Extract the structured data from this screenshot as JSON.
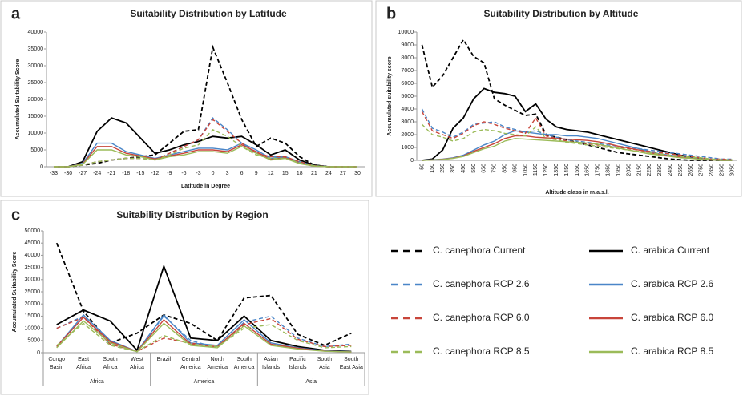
{
  "legend": [
    {
      "name": "C. canephora Current",
      "color": "#000000",
      "dashed": true
    },
    {
      "name": "C. arabica Current",
      "color": "#000000",
      "dashed": false
    },
    {
      "name": "C. canephora RCP 2.6",
      "color": "#4a86c8",
      "dashed": true
    },
    {
      "name": "C. arabica RCP 2.6",
      "color": "#4a86c8",
      "dashed": false
    },
    {
      "name": "C. canephora RCP 6.0",
      "color": "#c8453a",
      "dashed": true
    },
    {
      "name": "C. arabica RCP 6.0",
      "color": "#c8453a",
      "dashed": false
    },
    {
      "name": "C. canephora RCP 8.5",
      "color": "#9bbb59",
      "dashed": true
    },
    {
      "name": "C. arabica RCP 8.5",
      "color": "#9bbb59",
      "dashed": false
    }
  ],
  "chart_data": [
    {
      "type": "line",
      "panel": "a",
      "title": "Suitability Distribution by Latitude",
      "x_label": "Latitude in Degree",
      "y_label": "Accumulated Suitability Score",
      "categories": [
        -33,
        -30,
        -27,
        -24,
        -21,
        -18,
        -15,
        -12,
        -9,
        -6,
        -3,
        0,
        3,
        6,
        9,
        12,
        15,
        18,
        21,
        24,
        27,
        30
      ],
      "ylim": [
        0,
        40000
      ],
      "yticks": [
        0,
        5000,
        10000,
        15000,
        20000,
        25000,
        30000,
        35000,
        40000
      ],
      "series": [
        {
          "values": [
            0,
            0,
            500,
            1000,
            2000,
            2500,
            3000,
            3500,
            7000,
            10500,
            11000,
            35500,
            25000,
            14000,
            6000,
            8500,
            7000,
            3000,
            500,
            0,
            0,
            0
          ]
        },
        {
          "values": [
            0,
            0,
            1500,
            10500,
            14500,
            13000,
            8500,
            4000,
            5000,
            6500,
            7500,
            9000,
            8500,
            9000,
            6500,
            3500,
            5000,
            2000,
            500,
            0,
            0,
            0
          ]
        },
        {
          "values": [
            0,
            0,
            500,
            1500,
            2000,
            2500,
            2500,
            2000,
            4000,
            6000,
            8000,
            14500,
            11000,
            7000,
            4000,
            3000,
            3000,
            1500,
            300,
            0,
            0,
            0
          ]
        },
        {
          "values": [
            0,
            0,
            1000,
            7000,
            7000,
            4500,
            3500,
            2500,
            3500,
            4500,
            5500,
            5500,
            5000,
            7000,
            5000,
            2500,
            3000,
            1200,
            300,
            0,
            0,
            0
          ]
        },
        {
          "values": [
            0,
            0,
            500,
            1500,
            2000,
            2500,
            2500,
            2000,
            4000,
            6000,
            8000,
            14000,
            10500,
            7000,
            4000,
            3000,
            3000,
            1500,
            300,
            0,
            0,
            0
          ]
        },
        {
          "values": [
            0,
            0,
            800,
            6000,
            6000,
            4000,
            3200,
            2300,
            3200,
            4000,
            5000,
            5000,
            4500,
            6500,
            4500,
            2200,
            2700,
            1000,
            200,
            0,
            0,
            0
          ]
        },
        {
          "values": [
            0,
            0,
            500,
            1500,
            2000,
            2500,
            2500,
            2000,
            3500,
            5500,
            6500,
            11000,
            9000,
            6000,
            3500,
            2500,
            2500,
            1200,
            300,
            0,
            0,
            0
          ]
        },
        {
          "values": [
            0,
            0,
            700,
            5000,
            5000,
            3500,
            3000,
            2000,
            3000,
            3500,
            4500,
            4500,
            4000,
            6000,
            4000,
            2000,
            2500,
            900,
            200,
            0,
            0,
            0
          ]
        }
      ]
    },
    {
      "type": "line",
      "panel": "b",
      "title": "Suitability Distribution by Altitude",
      "x_label": "Altitude class in m.a.s.l.",
      "y_label": "Accumulated suitability score",
      "categories": [
        50,
        150,
        250,
        350,
        450,
        550,
        650,
        750,
        850,
        950,
        1050,
        1150,
        1250,
        1350,
        1450,
        1550,
        1650,
        1750,
        1850,
        1950,
        2050,
        2150,
        2250,
        2350,
        2450,
        2550,
        2650,
        2750,
        2850,
        2950,
        3050
      ],
      "ylim": [
        0,
        10000
      ],
      "yticks": [
        0,
        1000,
        2000,
        3000,
        4000,
        5000,
        6000,
        7000,
        8000,
        9000,
        10000
      ],
      "series": [
        {
          "values": [
            9000,
            5700,
            6600,
            8000,
            9400,
            8100,
            7600,
            4800,
            4300,
            3900,
            3500,
            3600,
            2000,
            1800,
            1600,
            1400,
            1200,
            1000,
            800,
            600,
            500,
            400,
            300,
            200,
            100,
            50,
            0,
            0,
            0,
            0,
            0
          ]
        },
        {
          "values": [
            0,
            100,
            800,
            2500,
            3300,
            4800,
            5600,
            5300,
            5200,
            5000,
            3800,
            4400,
            3200,
            2600,
            2400,
            2300,
            2200,
            2000,
            1800,
            1600,
            1400,
            1200,
            1000,
            800,
            600,
            400,
            250,
            100,
            50,
            0,
            0
          ]
        },
        {
          "values": [
            4000,
            2500,
            2200,
            1800,
            2200,
            2800,
            2900,
            3000,
            2600,
            2400,
            2200,
            2300,
            2000,
            1800,
            1600,
            1500,
            1400,
            1300,
            1200,
            1100,
            1000,
            900,
            800,
            700,
            600,
            500,
            400,
            300,
            200,
            100,
            100
          ]
        },
        {
          "values": [
            0,
            50,
            100,
            200,
            400,
            800,
            1200,
            1500,
            2000,
            2300,
            2200,
            2100,
            2000,
            2000,
            1900,
            1900,
            1800,
            1700,
            1500,
            1300,
            1100,
            900,
            700,
            500,
            400,
            300,
            200,
            100,
            50,
            0,
            0
          ]
        },
        {
          "values": [
            3800,
            2300,
            2000,
            1700,
            2100,
            2700,
            3000,
            2800,
            2500,
            2300,
            2100,
            3300,
            1900,
            1700,
            1500,
            1400,
            1300,
            1200,
            1100,
            1000,
            900,
            800,
            700,
            600,
            500,
            400,
            300,
            200,
            100,
            100,
            50
          ]
        },
        {
          "values": [
            0,
            40,
            80,
            170,
            340,
            700,
            1000,
            1300,
            1700,
            1900,
            1900,
            1800,
            1750,
            1700,
            1650,
            1600,
            1550,
            1450,
            1300,
            1100,
            950,
            800,
            600,
            450,
            350,
            250,
            170,
            90,
            40,
            0,
            0
          ]
        },
        {
          "values": [
            2800,
            2000,
            1800,
            1500,
            1700,
            2200,
            2400,
            2300,
            2100,
            2000,
            1900,
            2600,
            1700,
            1600,
            1400,
            1300,
            1200,
            1100,
            1000,
            900,
            800,
            700,
            600,
            500,
            400,
            300,
            250,
            200,
            100,
            50,
            50
          ]
        },
        {
          "values": [
            0,
            30,
            70,
            150,
            300,
            600,
            900,
            1100,
            1500,
            1700,
            1650,
            1600,
            1550,
            1500,
            1450,
            1400,
            1350,
            1250,
            1100,
            950,
            800,
            650,
            500,
            400,
            300,
            200,
            150,
            80,
            30,
            0,
            0
          ]
        }
      ]
    },
    {
      "type": "line",
      "panel": "c",
      "title": "Suitability Distribution by Region",
      "y_label": "Accumulated Suitability Score",
      "categories": [
        "Congo Basin",
        "East Africa",
        "South Africa",
        "West Africa",
        "Brazil",
        "Central America",
        "North America",
        "South America",
        "Asian Islands",
        "Pacific Islands",
        "South Asia",
        "South East Asia"
      ],
      "groups": [
        "Africa",
        "America",
        "Asia"
      ],
      "ylim": [
        0,
        50000
      ],
      "yticks": [
        0,
        5000,
        10000,
        15000,
        20000,
        25000,
        30000,
        35000,
        40000,
        45000,
        50000
      ],
      "series": [
        {
          "values": [
            45000,
            17000,
            4000,
            8000,
            15500,
            12000,
            5000,
            22500,
            23500,
            7500,
            3000,
            8000
          ]
        },
        {
          "values": [
            11500,
            17500,
            13000,
            1000,
            35500,
            6000,
            5000,
            15000,
            5000,
            2500,
            1000,
            500
          ]
        },
        {
          "values": [
            10000,
            15000,
            3500,
            500,
            15000,
            5000,
            2000,
            12500,
            15000,
            6000,
            2500,
            3500
          ]
        },
        {
          "values": [
            2500,
            15500,
            5000,
            500,
            15500,
            4000,
            3000,
            13500,
            4000,
            2000,
            800,
            400
          ]
        },
        {
          "values": [
            10000,
            14500,
            3500,
            500,
            6000,
            4000,
            2000,
            11500,
            14000,
            5500,
            2500,
            3000
          ]
        },
        {
          "values": [
            2500,
            14500,
            4500,
            500,
            13500,
            3500,
            2500,
            12000,
            3500,
            1800,
            700,
            300
          ]
        },
        {
          "values": [
            3000,
            12000,
            3000,
            500,
            7000,
            3500,
            2500,
            10000,
            11500,
            5000,
            2000,
            2500
          ]
        },
        {
          "values": [
            2000,
            13000,
            4000,
            400,
            12000,
            3000,
            2000,
            11000,
            3000,
            1500,
            600,
            300
          ]
        }
      ]
    }
  ]
}
